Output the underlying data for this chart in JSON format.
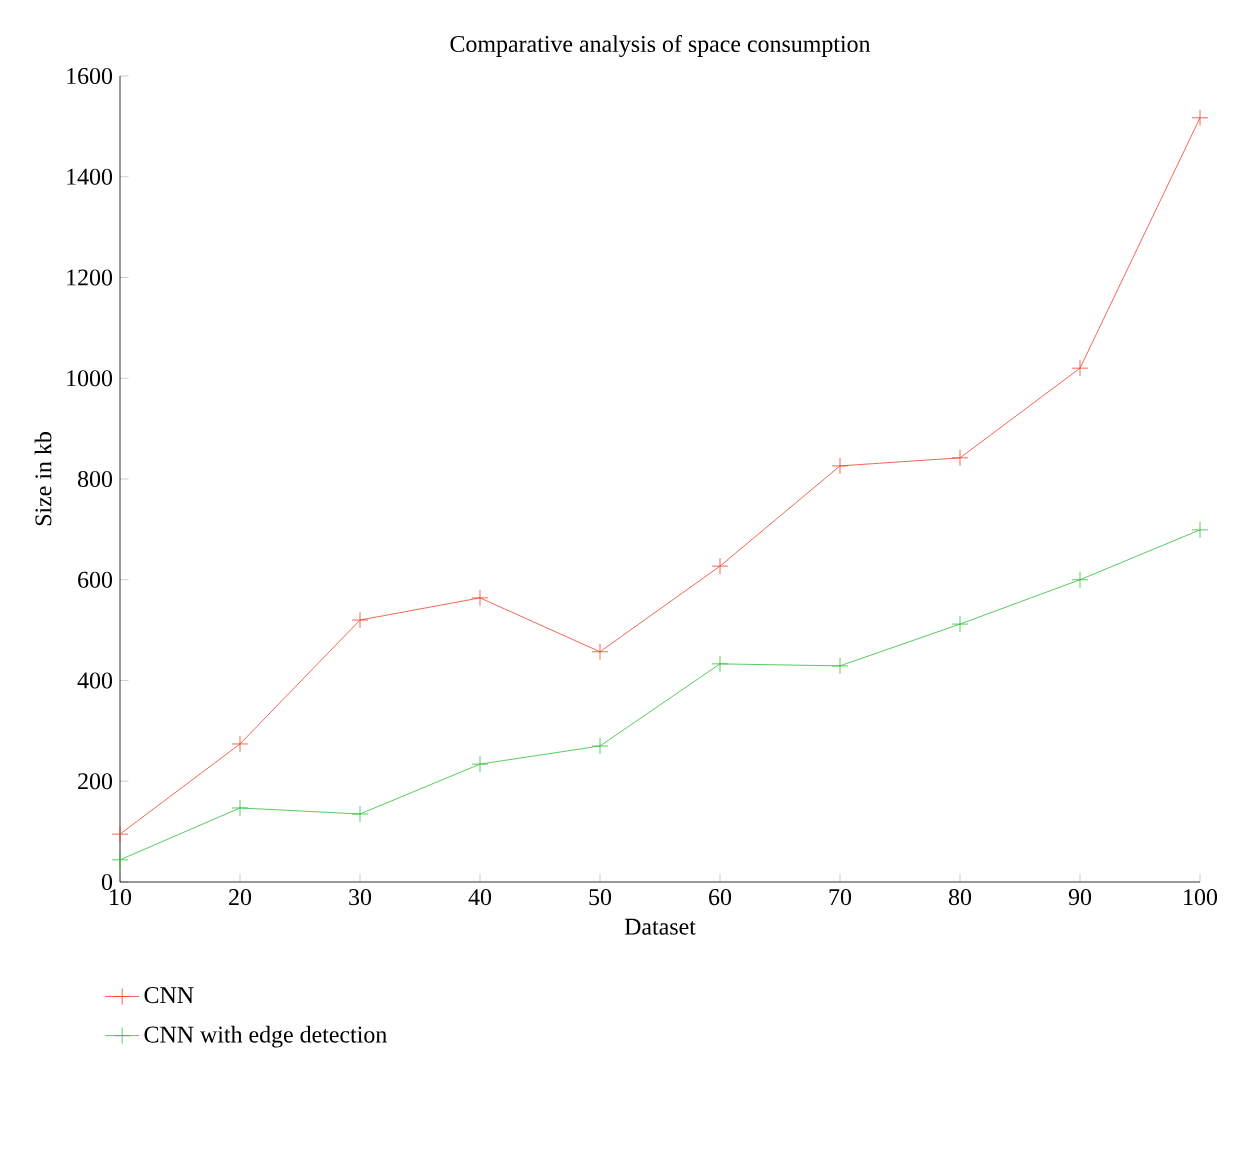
{
  "chart_data": {
    "type": "line",
    "title": "Comparative analysis of space consumption",
    "xlabel": "Dataset",
    "ylabel": "Size in kb",
    "x": [
      10,
      20,
      30,
      40,
      50,
      60,
      70,
      80,
      90,
      100
    ],
    "series": [
      {
        "name": "CNN",
        "color": "#f0412a",
        "values": [
          95,
          274,
          520,
          564,
          457,
          627,
          826,
          842,
          1020,
          1517
        ]
      },
      {
        "name": "CNN with edge detection",
        "color": "#2fbf3a",
        "values": [
          44,
          147,
          135,
          234,
          270,
          433,
          429,
          512,
          600,
          699
        ]
      }
    ],
    "xlim": [
      10,
      100
    ],
    "xticks": [
      10,
      20,
      30,
      40,
      50,
      60,
      70,
      80,
      90,
      100
    ],
    "ylim": [
      0,
      1600
    ],
    "yticks": [
      0,
      200,
      400,
      600,
      800,
      1000,
      1200,
      1400,
      1600
    ],
    "marker": "cross",
    "line_style": "solid",
    "grid": false,
    "legend": "bottom"
  }
}
